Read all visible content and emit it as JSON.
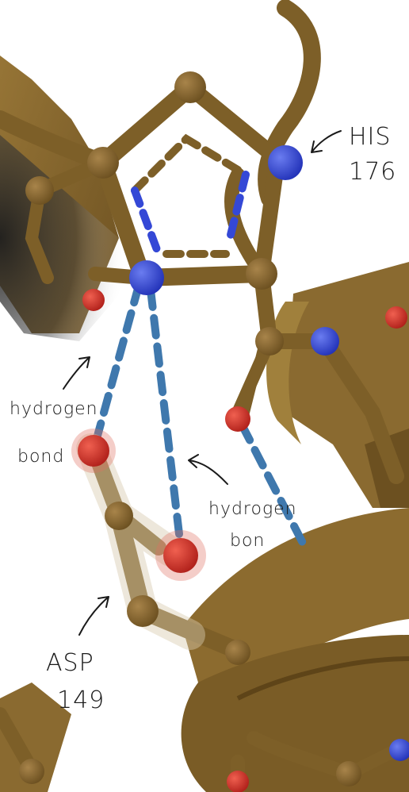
{
  "labels": {
    "his_line1": "HIS",
    "his_line2": "176",
    "hbond_left_line1": "hydrogen",
    "hbond_left_line2": "bond",
    "hbond_right_line1": "hydrogen",
    "hbond_right_line2": "bon",
    "asp_line1": "ASP",
    "asp_line2": "149"
  },
  "colors": {
    "background": "#ffffff",
    "ribbon": "#8a6a30",
    "stick": "#7d5f28",
    "carbon_atom": "#7a5c26",
    "nitrogen_atom": "#3448d6",
    "oxygen_atom": "#d23224",
    "hydrogen_bond": "#3f78ad",
    "ink": "#1a1a1a"
  }
}
